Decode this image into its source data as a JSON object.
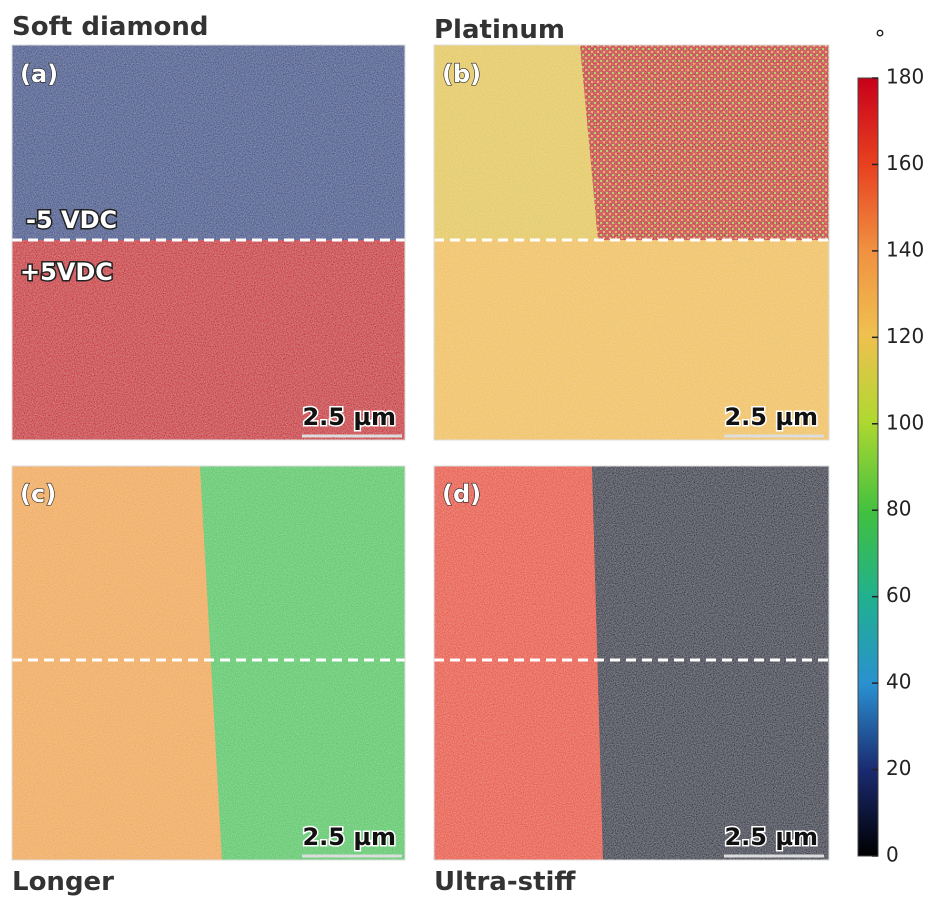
{
  "panels": [
    {
      "title": "Soft diamond",
      "label": "(a)",
      "scale_bar": "2.5 µm",
      "annotations": [
        "-5 VDC",
        "+5VDC"
      ]
    },
    {
      "title": "Platinum",
      "label": "(b)",
      "scale_bar": "2.5 µm"
    },
    {
      "title": "Longer",
      "label": "(c)",
      "scale_bar": "2.5 µm"
    },
    {
      "title": "Ultra-stiff",
      "label": "(d)",
      "scale_bar": "2.5 µm"
    }
  ],
  "colorbar": {
    "unit": "°",
    "lim": [
      0,
      180
    ],
    "ticks": [
      0,
      20,
      40,
      60,
      80,
      100,
      120,
      140,
      160,
      180
    ]
  }
}
